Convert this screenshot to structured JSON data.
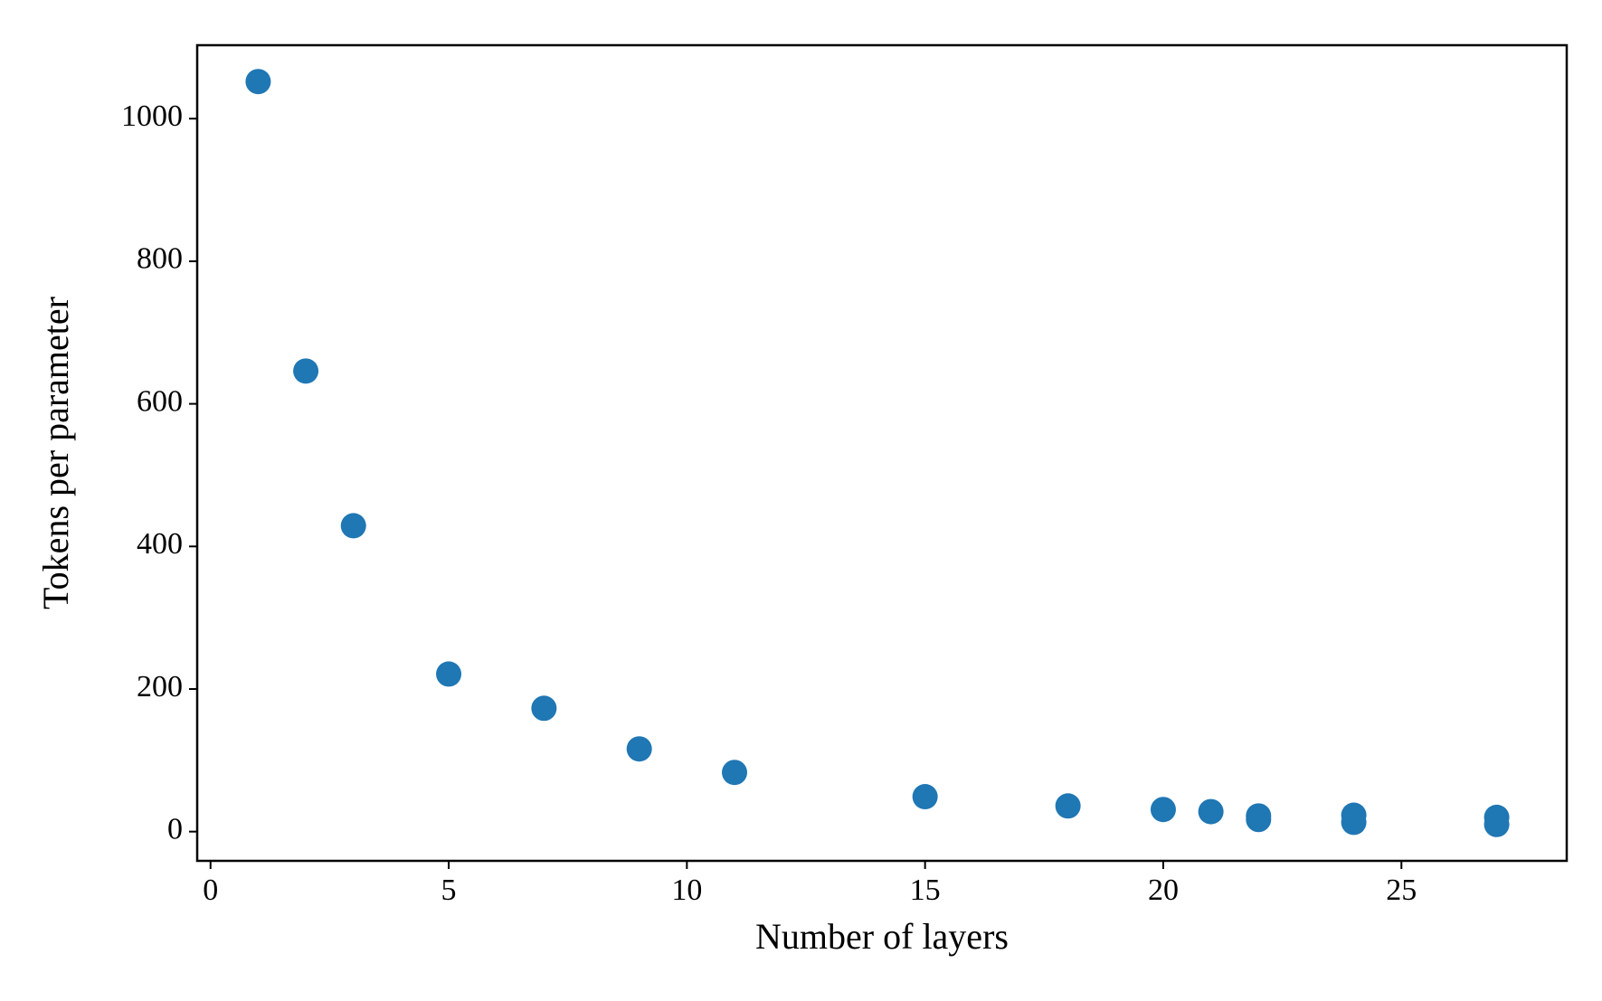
{
  "chart_data": {
    "type": "scatter",
    "x_label": "Number of layers",
    "y_label": "Tokens per parameter",
    "x": [
      1,
      2,
      3,
      5,
      7,
      9,
      11,
      15,
      18,
      20,
      21,
      22,
      22,
      24,
      24,
      27,
      27
    ],
    "series": [
      {
        "color": "#1f77b4",
        "values": [
          1052,
          646,
          429,
          221,
          173,
          116,
          83,
          49,
          36,
          31,
          28,
          22,
          17,
          23,
          13,
          20,
          10
        ]
      }
    ],
    "xlim": [
      -0.28,
      28.47
    ],
    "xticks": [
      0,
      5,
      10,
      15,
      20,
      25
    ],
    "ylim": [
      -41,
      1103
    ],
    "yticks": [
      0,
      200,
      400,
      600,
      800,
      1000
    ]
  }
}
